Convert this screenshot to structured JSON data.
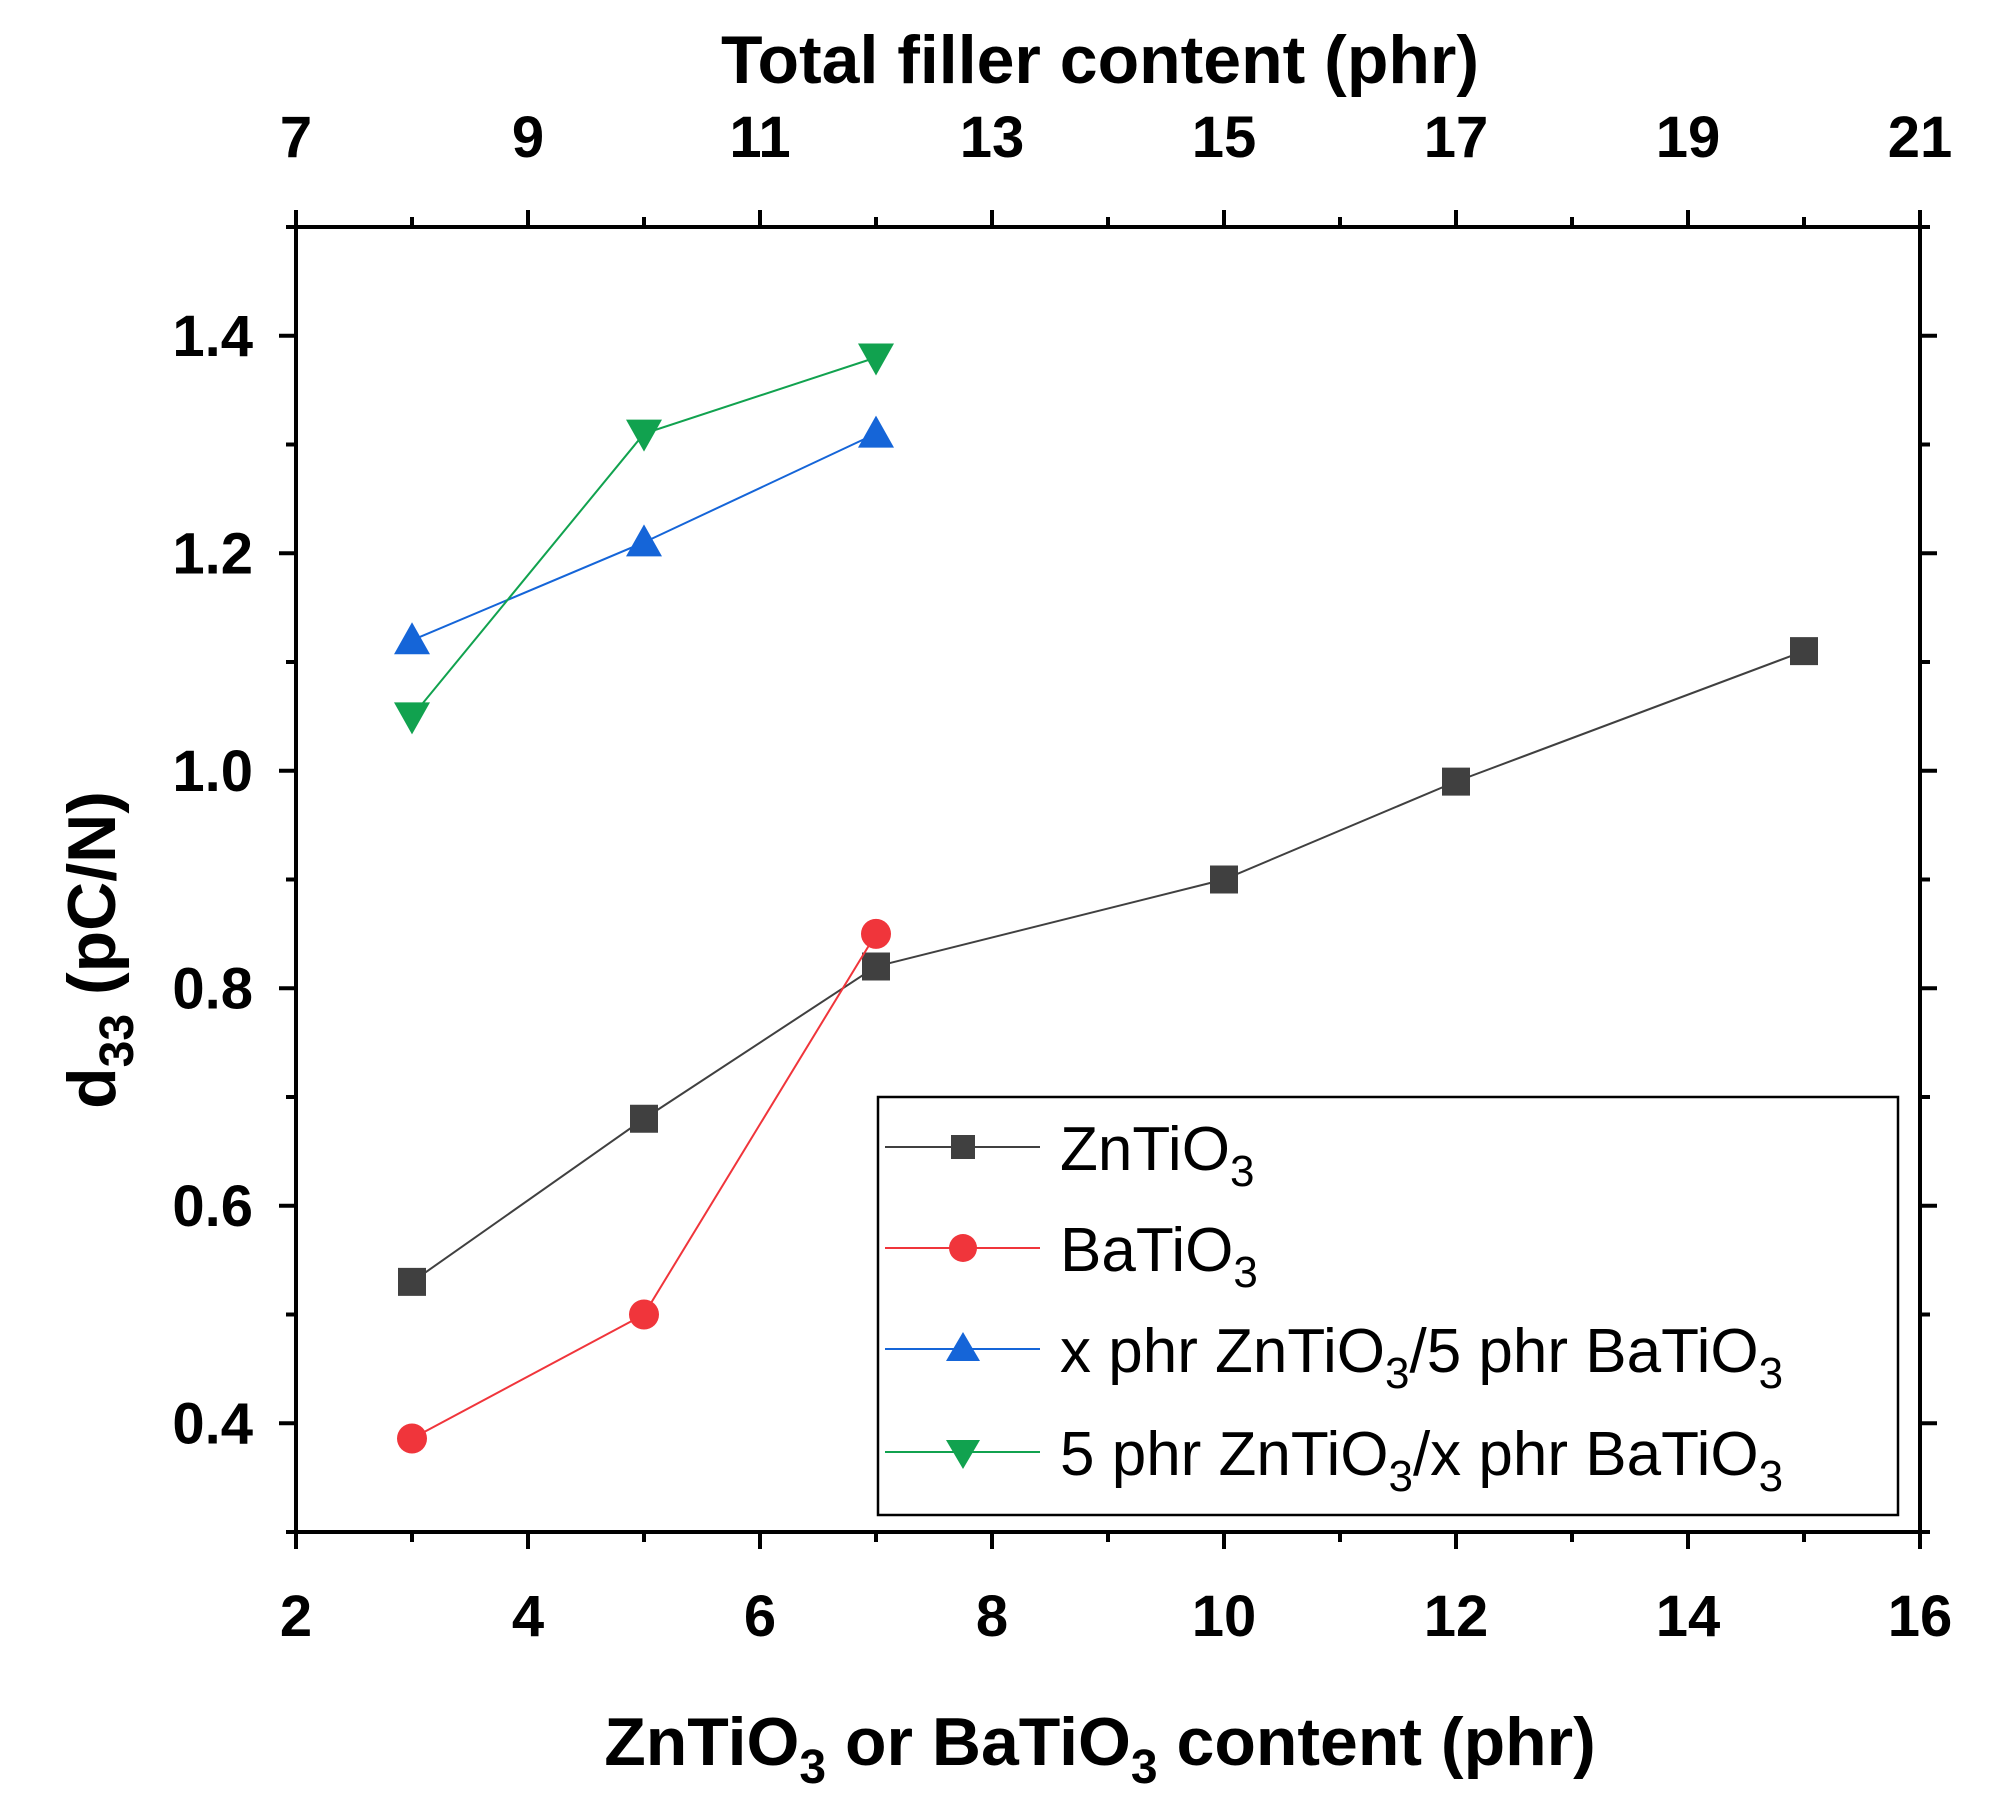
{
  "chart_data": {
    "type": "line",
    "title": "",
    "xlabel": "ZnTiO3 or BaTiO3 content (phr)",
    "ylabel": "d33 (pC/N)",
    "top_xlabel": "Total filler content (phr)",
    "xlim": [
      2,
      16
    ],
    "ylim": [
      0.3,
      1.5
    ],
    "x_ticks": [
      2,
      4,
      6,
      8,
      10,
      12,
      14,
      16
    ],
    "y_ticks": [
      0.4,
      0.6,
      0.8,
      1.0,
      1.2,
      1.4
    ],
    "y_tick_labels": [
      "0.4",
      "0.6",
      "0.8",
      "1.0",
      "1.2",
      "1.4"
    ],
    "top_ticks": [
      {
        "value": 7,
        "at_bottom_x": 2
      },
      {
        "value": 9,
        "at_bottom_x": 4
      },
      {
        "value": 11,
        "at_bottom_x": 6
      },
      {
        "value": 13,
        "at_bottom_x": 8
      },
      {
        "value": 15,
        "at_bottom_x": 10
      },
      {
        "value": 17,
        "at_bottom_x": 12
      },
      {
        "value": 19,
        "at_bottom_x": 14
      },
      {
        "value": 21,
        "at_bottom_x": 16
      }
    ],
    "grid": false,
    "legend_position": "bottom-right",
    "series": [
      {
        "name": "ZnTiO3",
        "label_main": "ZnTiO",
        "label_sub": "3",
        "label_rest": "",
        "color": "#404040",
        "marker": "square",
        "x": [
          3,
          5,
          7,
          10,
          12,
          15
        ],
        "y": [
          0.53,
          0.68,
          0.82,
          0.9,
          0.99,
          1.11
        ]
      },
      {
        "name": "BaTiO3",
        "label_main": "BaTiO",
        "label_sub": "3",
        "label_rest": "",
        "color": "#f0353b",
        "marker": "circle",
        "x": [
          3,
          5,
          7
        ],
        "y": [
          0.386,
          0.5,
          0.85
        ]
      },
      {
        "name": "x phr ZnTiO3/5 phr BaTiO3",
        "color": "#1565d8",
        "marker": "triangle-up",
        "x": [
          3,
          5,
          7
        ],
        "y": [
          1.12,
          1.21,
          1.31
        ]
      },
      {
        "name": "5 phr ZnTiO3/x phr BaTiO3",
        "color": "#11a24f",
        "marker": "triangle-down",
        "x": [
          3,
          5,
          7
        ],
        "y": [
          1.05,
          1.31,
          1.38
        ]
      }
    ]
  }
}
